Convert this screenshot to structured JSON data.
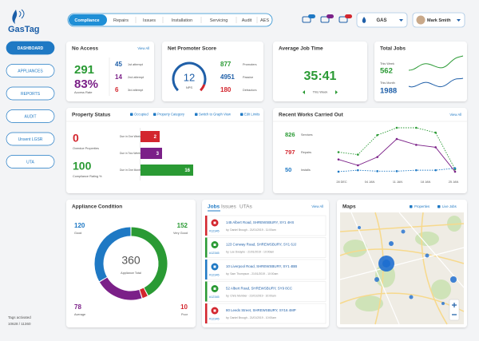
{
  "header": {
    "logo": "GasTag",
    "tabs": [
      "Compliance",
      "Repairs",
      "Issues",
      "Installation",
      "Servicing",
      "Audit",
      "AES"
    ],
    "fuel": "GAS",
    "user": "Mark Smith"
  },
  "sidebar": {
    "buttons": [
      "DASHBOARD",
      "APPLIANCES",
      "REPORTS",
      "AUDIT",
      "Unsent LGSR",
      "UTA"
    ],
    "tags_label": "Tags activated",
    "tags_value": "10628 / 11360"
  },
  "no_access": {
    "title": "No Access",
    "link": "View All",
    "count": 291,
    "rate": "83%",
    "rate_label": "Access Rate",
    "attempts": [
      {
        "value": 45,
        "label": "1st attempt"
      },
      {
        "value": 14,
        "label": "2nd attempt"
      },
      {
        "value": 6,
        "label": "3rd attempt"
      }
    ]
  },
  "nps": {
    "title": "Net Promoter Score",
    "score": 12,
    "score_label": "NPS",
    "stats": [
      {
        "value": 877,
        "label": "Promoters"
      },
      {
        "value": 4951,
        "label": "Passive"
      },
      {
        "value": 180,
        "label": "Detractors"
      }
    ]
  },
  "avg_job_time": {
    "title": "Average Job Time",
    "value": "35:41",
    "period": "This Week"
  },
  "total_jobs": {
    "title": "Total Jobs",
    "week_label": "This Week",
    "week": 562,
    "month_label": "This Month",
    "month": 1988
  },
  "property_status": {
    "title": "Property Status",
    "links": [
      "Occupied",
      "Property Category",
      "Switch to Graph View",
      "Edit Limits"
    ],
    "overdue": 0,
    "overdue_label": "Overdue Properties",
    "rating": 100,
    "rating_label": "Compliance Rating %",
    "bars": [
      {
        "label": "Due in One Week",
        "value": 2,
        "color": "#d3262e"
      },
      {
        "label": "Due in Two Weeks",
        "value": 3,
        "color": "#7b2088"
      },
      {
        "label": "Due in One Month",
        "value": 16,
        "color": "#2a9a34"
      }
    ]
  },
  "recent_works": {
    "title": "Recent Works Carried Out",
    "link": "View All",
    "stats": [
      {
        "value": 826,
        "label": "Services",
        "color": "#2a9a34"
      },
      {
        "value": 797,
        "label": "Repairs",
        "color": "#d3262e"
      },
      {
        "value": 50,
        "label": "Installs",
        "color": "#1f79c4"
      }
    ],
    "x_labels": [
      "28 DEC",
      "04 JAN",
      "11 JAN",
      "18 JAN",
      "25 JAN"
    ],
    "series": [
      {
        "color": "#2a9a34",
        "dash": "1.5 1.5",
        "values": [
          45,
          40,
          80,
          95,
          95,
          85,
          10
        ]
      },
      {
        "color": "#7b2088",
        "dash": "",
        "values": [
          30,
          18,
          35,
          72,
          60,
          55,
          5
        ]
      },
      {
        "color": "#1f79c4",
        "dash": "1.5 1.5",
        "values": [
          5,
          8,
          6,
          6,
          8,
          8,
          12
        ]
      }
    ]
  },
  "appliance_condition": {
    "title": "Appliance Condition",
    "total": 360,
    "total_label": "Appliance Total",
    "segments": [
      {
        "label": "Very Good",
        "value": 152,
        "color": "#2a9a34"
      },
      {
        "label": "Poor",
        "value": 10,
        "color": "#d3262e"
      },
      {
        "label": "Average",
        "value": 78,
        "color": "#7b2088"
      },
      {
        "label": "Good",
        "value": 120,
        "color": "#1f79c4"
      }
    ]
  },
  "jobs": {
    "tabs": [
      "Jobs",
      "Issues",
      "UTAs"
    ],
    "link": "View All",
    "items": [
      {
        "id": "#12345",
        "address": "145 Albert Road, SHREWSBURY, SY1 4HS",
        "by": "by. Daniel Brough - 21/01/2019 - 11:00am",
        "color": "#d3262e"
      },
      {
        "id": "#12345",
        "address": "123 Conway Road, SHREWSBURY, SY1 6JJ",
        "by": "by. Lee Dwayne - 21/01/2019 - 10:00am",
        "color": "#2a9a34"
      },
      {
        "id": "#12345",
        "address": "10 Liverpool Road, SHREWSBURY, SY1 4BB",
        "by": "by. Sam Thompson - 21/01/2019 - 10:00am",
        "color": "#1f79c4"
      },
      {
        "id": "#12345",
        "address": "52 Albert Road, SHREWSBURY, SY9 8CC",
        "by": "by. Chris Mumber - 21/01/2019 - 10:00am",
        "color": "#2a9a34"
      },
      {
        "id": "#12345",
        "address": "80 Leeds Street, SHREWSBURY, SY16 4MP",
        "by": "by. Daniel Brough - 21/01/2019 - 10:00am",
        "color": "#d3262e"
      }
    ]
  },
  "maps": {
    "title": "Maps",
    "links": [
      "Properties",
      "Live Jobs"
    ]
  }
}
